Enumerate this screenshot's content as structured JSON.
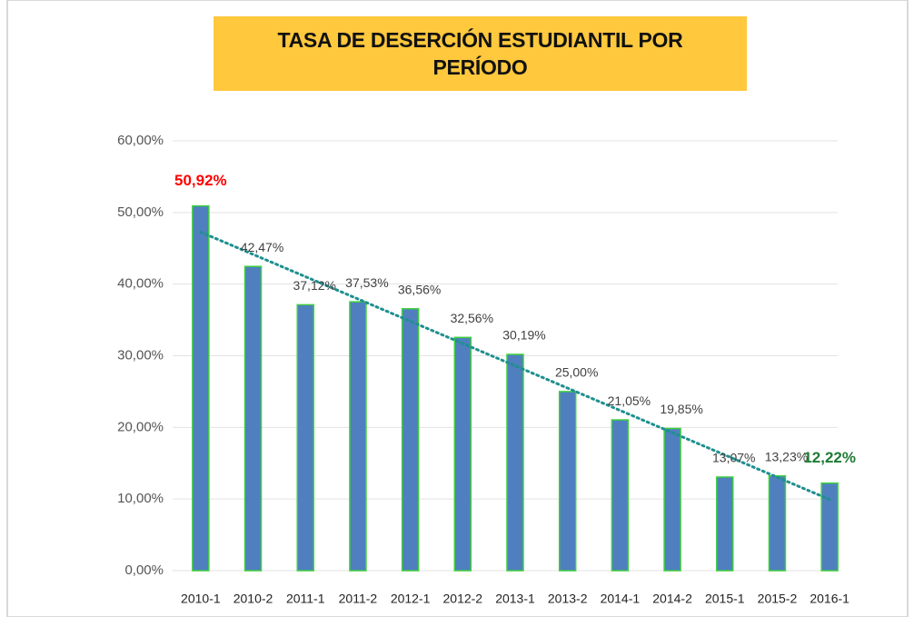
{
  "chart_data": {
    "type": "bar",
    "title": "TASA DE DESERCIÓN ESTUDIANTIL POR PERÍODO",
    "categories": [
      "2010-1",
      "2010-2",
      "2011-1",
      "2011-2",
      "2012-1",
      "2012-2",
      "2013-1",
      "2013-2",
      "2014-1",
      "2014-2",
      "2015-1",
      "2015-2",
      "2016-1"
    ],
    "values": [
      50.92,
      42.47,
      37.12,
      37.53,
      36.56,
      32.56,
      30.19,
      25.0,
      21.05,
      19.85,
      13.07,
      13.23,
      12.22
    ],
    "value_labels": [
      "50,92%",
      "42,47%",
      "37,12%",
      "37,53%",
      "36,56%",
      "32,56%",
      "30,19%",
      "25,00%",
      "21,05%",
      "19,85%",
      "13,07%",
      "13,23%",
      "12,22%"
    ],
    "value_label_colors": [
      "#ff0000",
      "#404040",
      "#404040",
      "#404040",
      "#404040",
      "#404040",
      "#404040",
      "#404040",
      "#404040",
      "#404040",
      "#404040",
      "#404040",
      "#1e7b34"
    ],
    "color": "#4f7fbf",
    "edge_color": "#3fcf3f",
    "trendline": true,
    "trendline_color": "#1f8f8f",
    "ylim": [
      0,
      60
    ],
    "yticks": [
      {
        "value": 0,
        "label": "0,00%"
      },
      {
        "value": 10,
        "label": "10,00%"
      },
      {
        "value": 20,
        "label": "20,00%"
      },
      {
        "value": 30,
        "label": "30,00%"
      },
      {
        "value": 40,
        "label": "40,00%"
      },
      {
        "value": 50,
        "label": "50,00%"
      },
      {
        "value": 60,
        "label": "60,00%"
      }
    ],
    "grid": true
  }
}
